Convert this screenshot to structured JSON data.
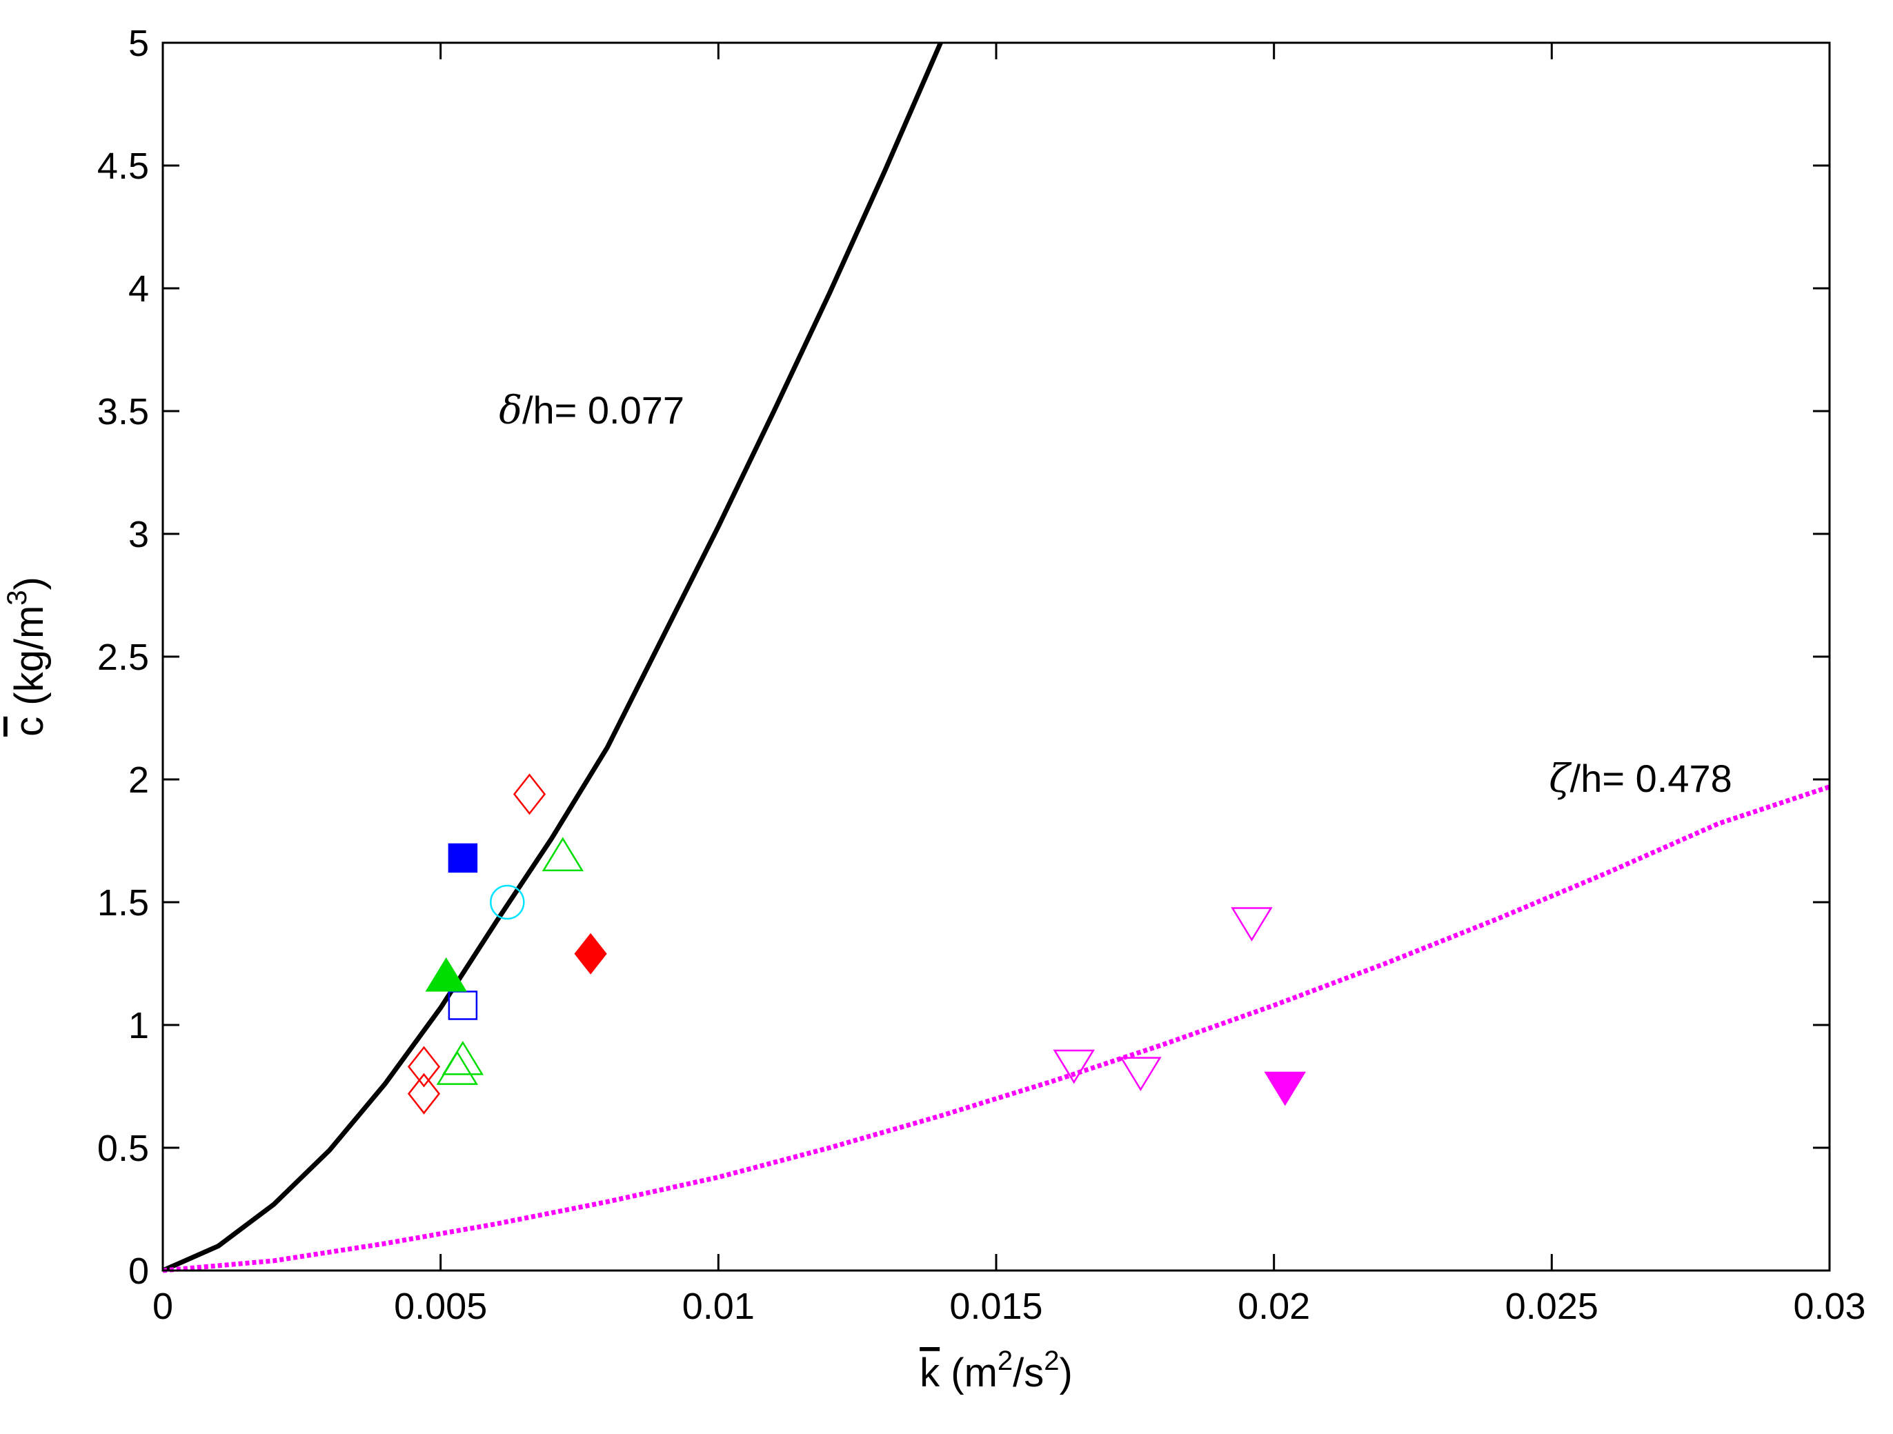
{
  "chart_data": {
    "type": "scatter",
    "xlim": [
      0,
      0.03
    ],
    "ylim": [
      0,
      5
    ],
    "x_ticks": [
      0,
      0.005,
      0.01,
      0.015,
      0.02,
      0.025,
      0.03
    ],
    "x_tick_labels": [
      "0",
      "0.005",
      "0.01",
      "0.015",
      "0.02",
      "0.025",
      "0.03"
    ],
    "y_ticks": [
      0,
      0.5,
      1,
      1.5,
      2,
      2.5,
      3,
      3.5,
      4,
      4.5,
      5
    ],
    "y_tick_labels": [
      "0",
      "0.5",
      "1",
      "1.5",
      "2",
      "2.5",
      "3",
      "3.5",
      "4",
      "4.5",
      "5"
    ],
    "xlabel": {
      "symbol": "k",
      "prefix": " (m",
      "sup1": "2",
      "mid": "/s",
      "sup2": "2",
      "suffix": ")"
    },
    "ylabel": {
      "symbol": "c",
      "prefix": " (kg/m",
      "sup": "3",
      "suffix": ")"
    },
    "grid": false,
    "curves": [
      {
        "style": "solid",
        "color": "#000000",
        "x": [
          0,
          0.001,
          0.002,
          0.003,
          0.004,
          0.005,
          0.006,
          0.007,
          0.008,
          0.009,
          0.01,
          0.011,
          0.012,
          0.013,
          0.014
        ],
        "y": [
          0,
          0.1,
          0.27,
          0.49,
          0.76,
          1.07,
          1.42,
          1.76,
          2.13,
          2.58,
          3.03,
          3.5,
          3.98,
          4.48,
          5.0
        ],
        "annotation": {
          "symbol": "δ",
          "text": "/h= 0.077",
          "x": 0.00605,
          "y": 3.45
        }
      },
      {
        "style": "dotted",
        "color": "#ff00ff",
        "x": [
          0,
          0.002,
          0.004,
          0.006,
          0.008,
          0.01,
          0.012,
          0.014,
          0.016,
          0.018,
          0.02,
          0.022,
          0.024,
          0.026,
          0.028,
          0.03
        ],
        "y": [
          0,
          0.04,
          0.11,
          0.19,
          0.28,
          0.38,
          0.5,
          0.63,
          0.77,
          0.92,
          1.08,
          1.25,
          1.43,
          1.62,
          1.82,
          1.97
        ],
        "annotation": {
          "symbol": "ζ",
          "text": "/h= 0.478",
          "x": 0.02495,
          "y": 1.95
        }
      }
    ],
    "points": [
      {
        "marker": "diamond",
        "color": "#ff0000",
        "filled": false,
        "x": 0.0066,
        "y": 1.94
      },
      {
        "marker": "diamond",
        "color": "#ff0000",
        "filled": false,
        "x": 0.0047,
        "y": 0.83
      },
      {
        "marker": "diamond",
        "color": "#ff0000",
        "filled": false,
        "x": 0.0047,
        "y": 0.72
      },
      {
        "marker": "diamond",
        "color": "#ff0000",
        "filled": true,
        "x": 0.0077,
        "y": 1.29
      },
      {
        "marker": "square",
        "color": "#0000ff",
        "filled": true,
        "x": 0.0054,
        "y": 1.68
      },
      {
        "marker": "square",
        "color": "#0000ff",
        "filled": false,
        "x": 0.0054,
        "y": 1.08
      },
      {
        "marker": "circle",
        "color": "#00e5ff",
        "filled": false,
        "x": 0.0062,
        "y": 1.5
      },
      {
        "marker": "triangle-up",
        "color": "#00dd00",
        "filled": false,
        "x": 0.0072,
        "y": 1.68
      },
      {
        "marker": "triangle-up",
        "color": "#00dd00",
        "filled": false,
        "x": 0.0054,
        "y": 0.85
      },
      {
        "marker": "triangle-up",
        "color": "#00dd00",
        "filled": false,
        "x": 0.0053,
        "y": 0.81
      },
      {
        "marker": "triangle-up",
        "color": "#00dd00",
        "filled": true,
        "x": 0.0051,
        "y": 1.19
      },
      {
        "marker": "triangle-down",
        "color": "#ff00ff",
        "filled": false,
        "x": 0.0196,
        "y": 1.42
      },
      {
        "marker": "triangle-down",
        "color": "#ff00ff",
        "filled": false,
        "x": 0.0164,
        "y": 0.84
      },
      {
        "marker": "triangle-down",
        "color": "#ff00ff",
        "filled": false,
        "x": 0.0176,
        "y": 0.81
      },
      {
        "marker": "triangle-down",
        "color": "#ff00ff",
        "filled": true,
        "x": 0.0202,
        "y": 0.75
      }
    ]
  }
}
